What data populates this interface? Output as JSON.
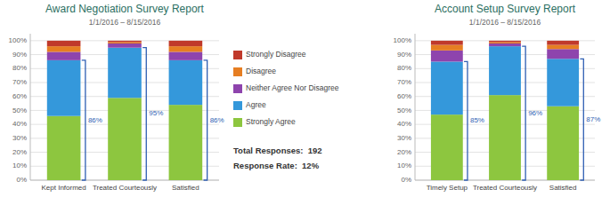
{
  "chart_data": [
    {
      "type": "bar",
      "stacked": true,
      "grid": true,
      "title": "Award Negotiation Survey Report",
      "subtitle": "1/1/2016 – 8/15/2016",
      "categories": [
        "Kept Informed",
        "Treated Courteously",
        "Satisfied"
      ],
      "series": [
        {
          "name": "Strongly Agree",
          "color": "#8dc63f",
          "values": [
            46,
            59,
            54
          ]
        },
        {
          "name": "Agree",
          "color": "#3498db",
          "values": [
            40,
            36,
            32
          ]
        },
        {
          "name": "Neither Agree Nor Disagree",
          "color": "#8e44ad",
          "values": [
            6,
            3,
            6
          ]
        },
        {
          "name": "Disagree",
          "color": "#e67e22",
          "values": [
            4,
            1,
            4
          ]
        },
        {
          "name": "Strongly Disagree",
          "color": "#c0392b",
          "values": [
            4,
            1,
            4
          ]
        }
      ],
      "bracket_values": [
        86,
        95,
        86
      ],
      "bracket_labels": [
        "86%",
        "95%",
        "86%"
      ],
      "annotations": [
        "Total Responses:  192",
        "Response Rate:  12%"
      ],
      "ylim": [
        0,
        105
      ],
      "yticks": [
        {
          "value": 0,
          "label": "0%"
        },
        {
          "value": 10,
          "label": "10%"
        },
        {
          "value": 20,
          "label": "20%"
        },
        {
          "value": 30,
          "label": "30%"
        },
        {
          "value": 40,
          "label": "40%"
        },
        {
          "value": 50,
          "label": "50%"
        },
        {
          "value": 60,
          "label": "60%"
        },
        {
          "value": 70,
          "label": "70%"
        },
        {
          "value": 80,
          "label": "80%"
        },
        {
          "value": 90,
          "label": "90%"
        },
        {
          "value": 100,
          "label": "100%"
        }
      ]
    },
    {
      "type": "bar",
      "stacked": true,
      "grid": true,
      "title": "Account Setup Survey Report",
      "subtitle": "1/1/2016 – 8/15/2016",
      "categories": [
        "Timely Setup",
        "Treated Courteously",
        "Satisfied"
      ],
      "series": [
        {
          "name": "Strongly Agree",
          "color": "#8dc63f",
          "values": [
            47,
            61,
            53
          ]
        },
        {
          "name": "Agree",
          "color": "#3498db",
          "values": [
            38,
            35,
            34
          ]
        },
        {
          "name": "Neither Agree Nor Disagree",
          "color": "#8e44ad",
          "values": [
            8,
            2,
            7
          ]
        },
        {
          "name": "Disagree",
          "color": "#e67e22",
          "values": [
            4,
            1,
            3
          ]
        },
        {
          "name": "Strongly Disagree",
          "color": "#c0392b",
          "values": [
            3,
            1,
            3
          ]
        }
      ],
      "bracket_values": [
        85,
        96,
        87
      ],
      "bracket_labels": [
        "85%",
        "96%",
        "87%"
      ],
      "ylim": [
        0,
        105
      ],
      "yticks": [
        {
          "value": 0,
          "label": "0%"
        },
        {
          "value": 10,
          "label": "10%"
        },
        {
          "value": 20,
          "label": "20%"
        },
        {
          "value": 30,
          "label": "30%"
        },
        {
          "value": 40,
          "label": "40%"
        },
        {
          "value": 50,
          "label": "50%"
        },
        {
          "value": 60,
          "label": "60%"
        },
        {
          "value": 70,
          "label": "70%"
        },
        {
          "value": 80,
          "label": "80%"
        },
        {
          "value": 90,
          "label": "90%"
        },
        {
          "value": 100,
          "label": "100%"
        }
      ]
    }
  ]
}
